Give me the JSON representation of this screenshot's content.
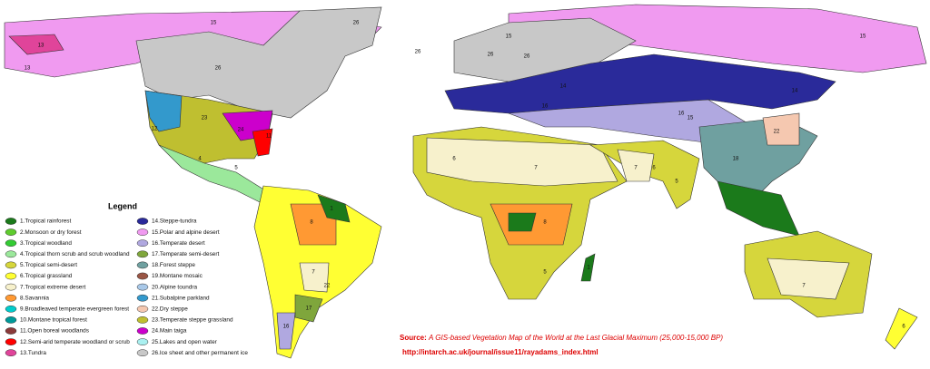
{
  "legend": {
    "title": "Legend",
    "items": [
      {
        "label": "1.Tropical rainforest",
        "color": "#1b7a1b"
      },
      {
        "label": "2.Monsoon or dry forest",
        "color": "#5fcc2e"
      },
      {
        "label": "3.Tropical woodland",
        "color": "#33cc33"
      },
      {
        "label": "4.Tropical thorn scrub and scrub woodland",
        "color": "#9be89b"
      },
      {
        "label": "5.Tropical semi-desert",
        "color": "#d6d63c"
      },
      {
        "label": "6.Tropical grassland",
        "color": "#ffff33"
      },
      {
        "label": "7.Tropical extreme desert",
        "color": "#f7f1cc"
      },
      {
        "label": "8.Savannia",
        "color": "#ff9933"
      },
      {
        "label": "9.Broadleaved temperate evergreen forest",
        "color": "#00cccc"
      },
      {
        "label": "10.Montane tropical forest",
        "color": "#009999"
      },
      {
        "label": "11.Open boreal woodlands",
        "color": "#8b3a3a"
      },
      {
        "label": "12.Semi-arid temperate woodland or scrub",
        "color": "#ff0000"
      },
      {
        "label": "13.Tundra",
        "color": "#e0449a"
      },
      {
        "label": "14.Steppe-tundra",
        "color": "#2a2a9a"
      },
      {
        "label": "15.Polar and alpine desert",
        "color": "#f09af0"
      },
      {
        "label": "16.Temperate desert",
        "color": "#b0a8e0"
      },
      {
        "label": "17.Temperate semi-desert",
        "color": "#7fa63c"
      },
      {
        "label": "18.Forest steppe",
        "color": "#6fa0a0"
      },
      {
        "label": "19.Montane mosaic",
        "color": "#995544"
      },
      {
        "label": "20.Alpine toundra",
        "color": "#a8c8e8"
      },
      {
        "label": "21.Subalpine parkland",
        "color": "#3399cc"
      },
      {
        "label": "22.Dry steppe",
        "color": "#f5c8b0"
      },
      {
        "label": "23.Temperate steppe grassland",
        "color": "#bfbf30"
      },
      {
        "label": "24.Main taiga",
        "color": "#cc00cc"
      },
      {
        "label": "25.Lakes and open water",
        "color": "#aaf0f0"
      },
      {
        "label": "26.Ice sheet and other permanent ice",
        "color": "#c8c8c8"
      }
    ]
  },
  "map_labels": [
    "15",
    "26",
    "13",
    "13",
    "26",
    "15",
    "26",
    "15",
    "26",
    "14",
    "14",
    "15",
    "16",
    "16",
    "22",
    "23",
    "24",
    "11",
    "12",
    "4",
    "5",
    "7",
    "8",
    "17",
    "16",
    "1",
    "7",
    "8",
    "6",
    "5",
    "7",
    "22",
    "1",
    "6",
    "7",
    "5",
    "6",
    "18",
    "26"
  ],
  "source": {
    "label": "Source:",
    "title": "A GIS-based Vegetation Map of the World at the Last Glacial Maximum (25,000-15,000 BP)",
    "url": "http://intarch.ac.uk/journal/issue11/rayadams_index.html"
  }
}
